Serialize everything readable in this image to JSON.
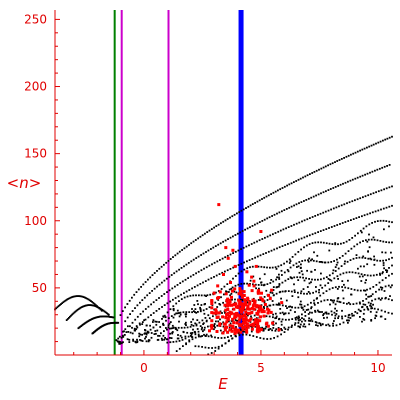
{
  "chart_data": {
    "type": "scatter",
    "xlabel": "E",
    "ylabel": "<n>",
    "xlim": [
      -3.8,
      10.6
    ],
    "ylim": [
      0,
      257
    ],
    "x_ticks": [
      0,
      5,
      10
    ],
    "x_tick_labels": [
      "0",
      "5",
      "10"
    ],
    "y_ticks": [
      50,
      100,
      150,
      200,
      250
    ],
    "y_tick_labels": [
      "50",
      "100",
      "150",
      "200",
      "250"
    ],
    "grid": false,
    "colors": {
      "axis": "#e00000",
      "ticklabel": "#e00000",
      "points": "#000000",
      "highlight": "#ff0000"
    },
    "vertical_lines": [
      {
        "x": -1.25,
        "color": "#008000",
        "width": 2
      },
      {
        "x": -0.95,
        "color": "#cc00cc",
        "width": 2
      },
      {
        "x": 1.05,
        "color": "#cc00cc",
        "width": 2
      },
      {
        "x": 4.15,
        "color": "#0000ff",
        "width": 5
      }
    ],
    "bands": [
      {
        "x0": -1.0,
        "x1": 10.6,
        "ya": 10,
        "yb": 36.2,
        "p": 0.58,
        "n": 120
      },
      {
        "x0": -0.8,
        "x1": 10.6,
        "ya": 9,
        "yb": 30.4,
        "p": 0.6,
        "n": 110
      },
      {
        "x0": -0.6,
        "x1": 10.6,
        "ya": 8,
        "yb": 25.8,
        "p": 0.62,
        "n": 100
      },
      {
        "x0": -0.4,
        "x1": 10.6,
        "ya": 7,
        "yb": 22.0,
        "p": 0.64,
        "n": 95
      },
      {
        "x0": -0.2,
        "x1": 10.6,
        "ya": 6,
        "yb": 19.0,
        "p": 0.66,
        "n": 90
      },
      {
        "x0": 0.2,
        "x1": 10.6,
        "ya": 5,
        "yb": 16.4,
        "p": 0.68,
        "n": 85
      },
      {
        "x0": 0.6,
        "x1": 10.6,
        "ya": 4,
        "yb": 14.0,
        "p": 0.7,
        "n": 80
      },
      {
        "x0": 1.0,
        "x1": 10.6,
        "ya": 3,
        "yb": 12.2,
        "p": 0.72,
        "n": 75
      },
      {
        "x0": 1.4,
        "x1": 10.6,
        "ya": 2,
        "yb": 10.4,
        "p": 0.74,
        "n": 70
      },
      {
        "x0": 1.8,
        "x1": 10.6,
        "ya": 2,
        "yb": 8.6,
        "p": 0.76,
        "n": 65
      },
      {
        "x0": 2.2,
        "x1": 10.6,
        "ya": 1,
        "yb": 7.2,
        "p": 0.78,
        "n": 60
      },
      {
        "x0": 2.6,
        "x1": 10.6,
        "ya": 1,
        "yb": 6.0,
        "p": 0.8,
        "n": 55
      }
    ],
    "left_arcs": [
      {
        "x0": -3.8,
        "x1": -1.8,
        "y0": 34,
        "peak": 42,
        "y1": 33
      },
      {
        "x0": -3.3,
        "x1": -1.5,
        "y0": 26,
        "peak": 37,
        "y1": 30
      },
      {
        "x0": -2.8,
        "x1": -1.3,
        "y0": 20,
        "peak": 31,
        "y1": 28
      },
      {
        "x0": -2.2,
        "x1": -1.1,
        "y0": 16,
        "peak": 26,
        "y1": 24
      }
    ],
    "cloud": {
      "x0": -1.2,
      "x1": 10.6,
      "n": 520
    },
    "red_cluster": {
      "cx": 4.2,
      "cy": 27,
      "n": 230
    },
    "red_scatter": [
      [
        2.8,
        18
      ],
      [
        3.2,
        112
      ],
      [
        3.5,
        80
      ],
      [
        3.8,
        78
      ],
      [
        3.6,
        72
      ],
      [
        3.9,
        66
      ],
      [
        4.4,
        62
      ],
      [
        4.6,
        58
      ],
      [
        4.7,
        55
      ],
      [
        3.4,
        60
      ],
      [
        5.0,
        92
      ],
      [
        4.9,
        48
      ],
      [
        3.0,
        46
      ],
      [
        2.9,
        40
      ],
      [
        4.5,
        52
      ],
      [
        4.8,
        66
      ],
      [
        3.7,
        54
      ],
      [
        5.4,
        42
      ]
    ]
  }
}
